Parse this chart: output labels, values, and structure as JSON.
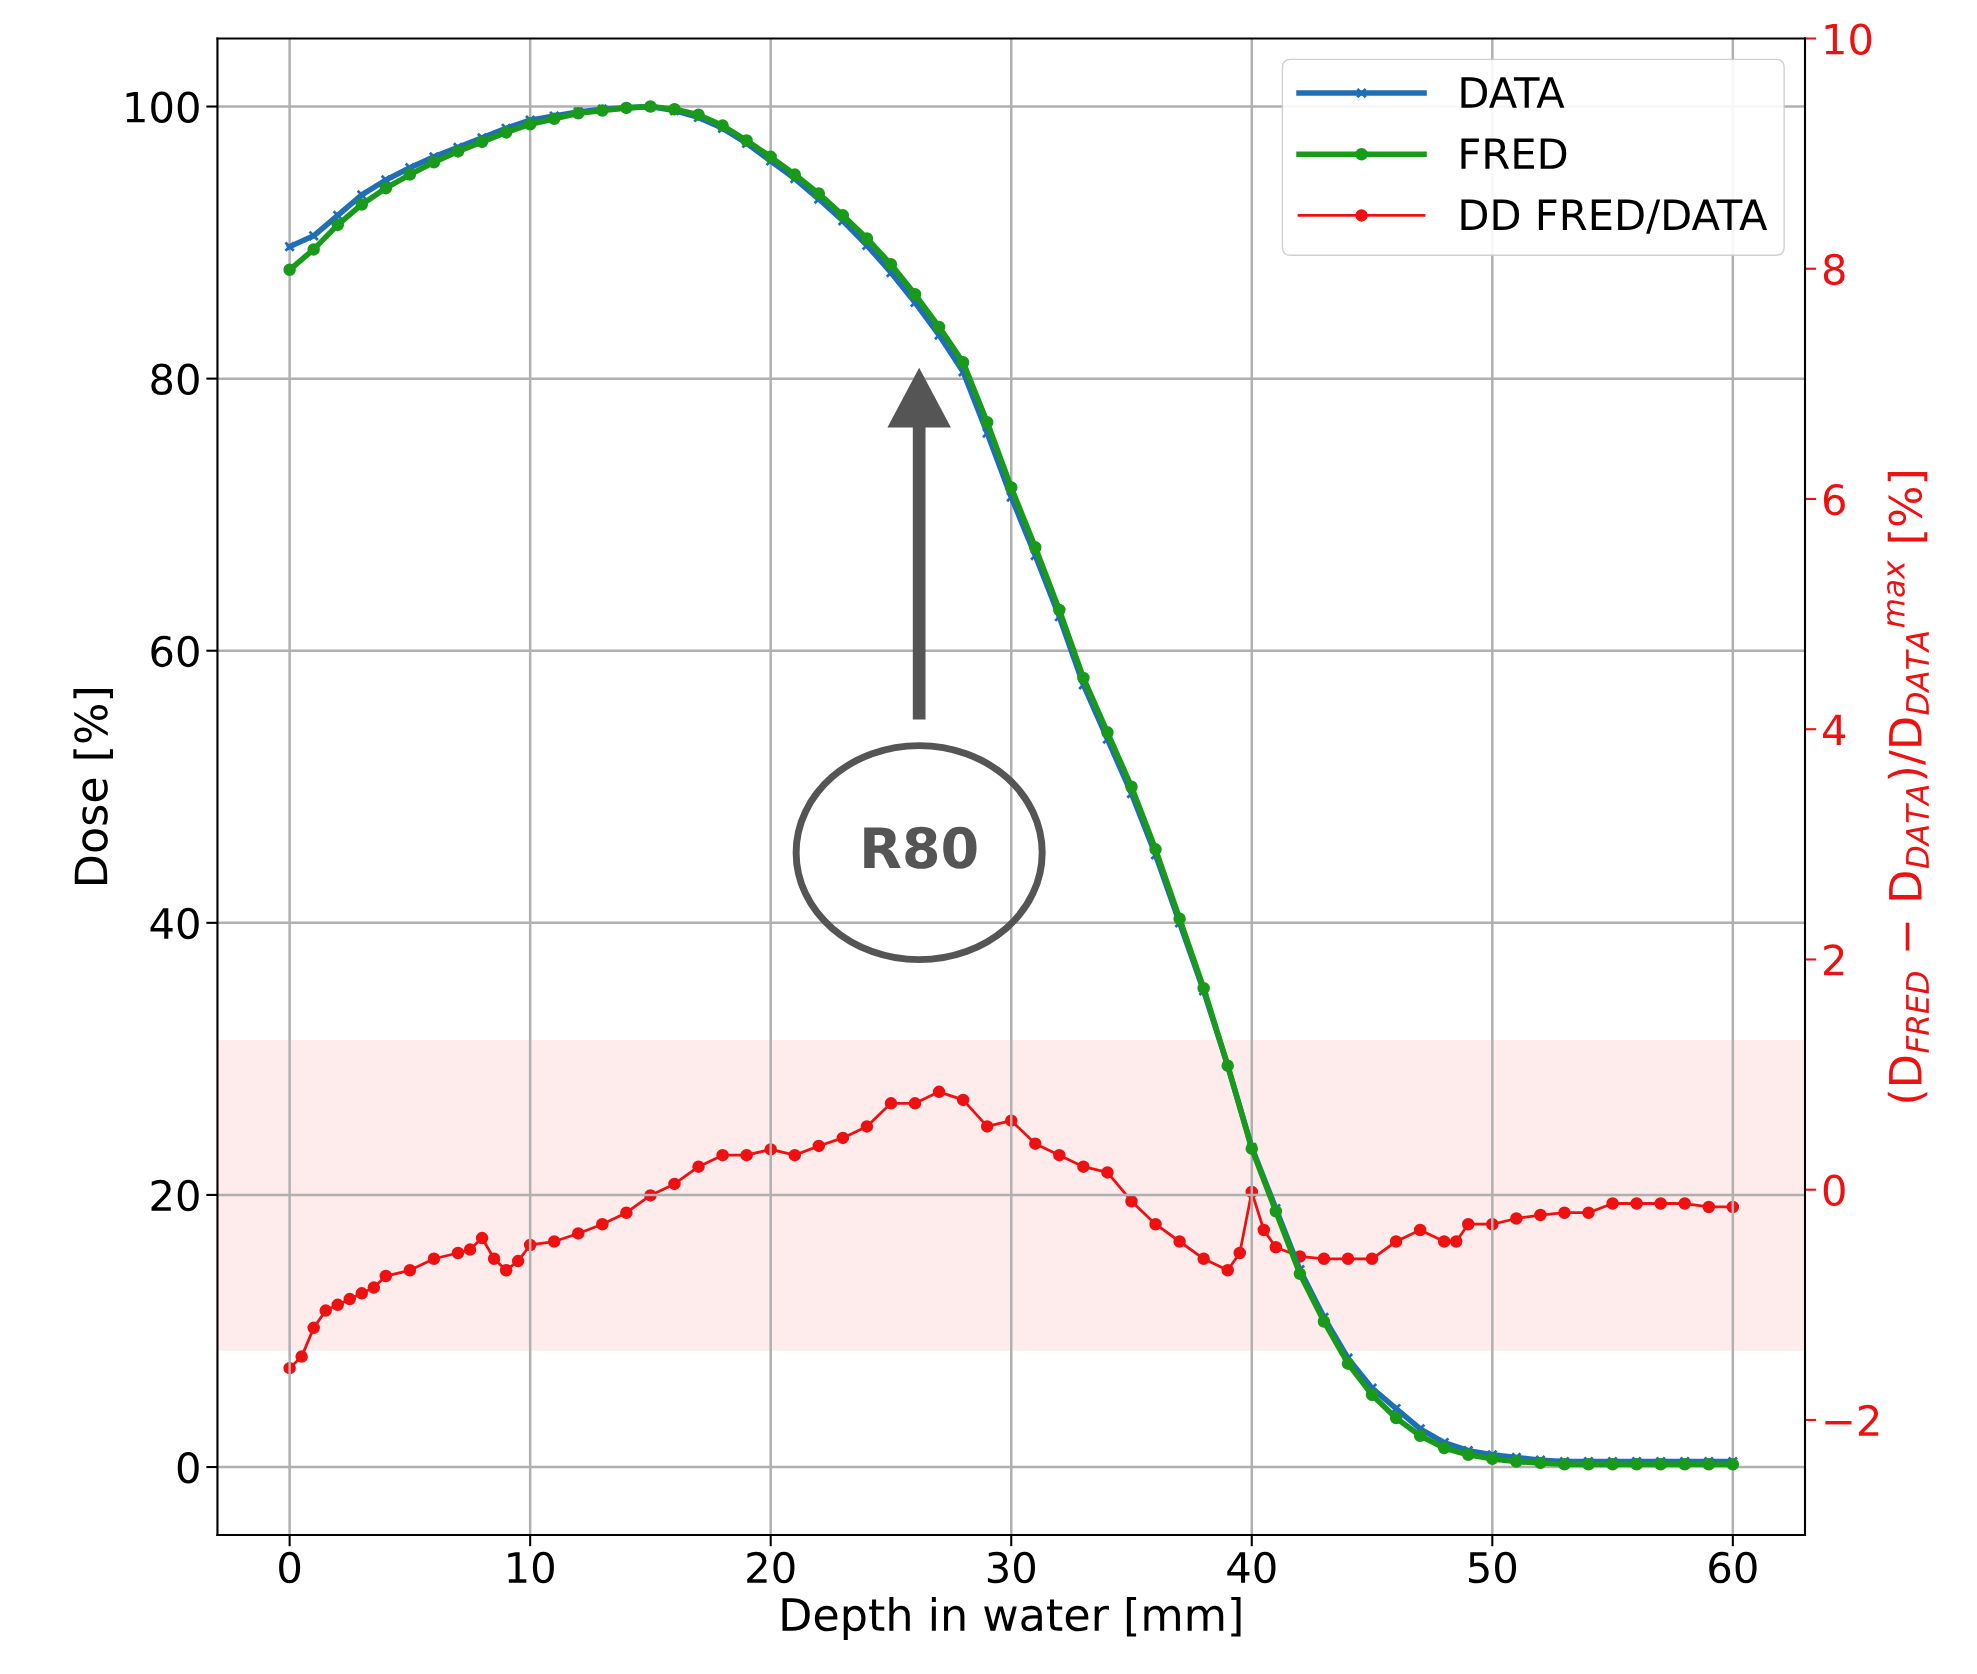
{
  "chart_data": {
    "type": "line",
    "xlabel": "Depth in water [mm]",
    "ylabel": "Dose [%]",
    "y2label": "(D$_{FRED}$ − D$_{DATA}$)/D$_{DATA}$$^{max}$ [%]",
    "xlim": [
      -3,
      63
    ],
    "xticks": [
      0,
      10,
      20,
      30,
      40,
      50,
      60
    ],
    "ylim": [
      -5,
      105
    ],
    "yticks": [
      0,
      20,
      40,
      60,
      80,
      100
    ],
    "y2lim": [
      -3,
      10
    ],
    "y2ticks": [
      {
        "value": -2,
        "label": "−2"
      },
      0,
      2,
      4,
      6,
      8,
      10
    ],
    "grid": true,
    "legend": "top right",
    "series": [
      {
        "name": "DATA",
        "color": "#1f6fb4",
        "marker": "cross",
        "x": [
          0,
          1,
          2,
          3,
          4,
          5,
          6,
          7,
          8,
          9,
          10,
          11,
          12,
          13,
          14,
          15,
          16,
          17,
          18,
          19,
          20,
          21,
          22,
          23,
          24,
          25,
          26,
          27,
          28,
          29,
          30,
          31,
          32,
          33,
          34,
          35,
          36,
          37,
          38,
          39,
          40,
          41,
          42,
          43,
          44,
          45,
          46,
          47,
          48,
          49,
          50,
          51,
          52,
          53,
          54,
          55,
          56,
          57,
          58,
          59,
          60
        ],
        "values": [
          89.7,
          90.5,
          92,
          93.5,
          94.6,
          95.5,
          96.3,
          97,
          97.7,
          98.4,
          99,
          99.3,
          99.6,
          99.8,
          99.9,
          100,
          99.7,
          99.2,
          98.4,
          97.3,
          96,
          94.7,
          93.2,
          91.6,
          89.8,
          87.8,
          85.6,
          83.2,
          80.5,
          76,
          71.3,
          67,
          62.5,
          57.5,
          53.5,
          49.5,
          45,
          40,
          35,
          29.5,
          23.5,
          19,
          14.5,
          11,
          8,
          5.8,
          4.3,
          2.8,
          1.8,
          1.2,
          0.9,
          0.7,
          0.5,
          0.4,
          0.4,
          0.4,
          0.4,
          0.4,
          0.4,
          0.4,
          0.4
        ]
      },
      {
        "name": "FRED",
        "color": "#1a9a1a",
        "marker": "circle",
        "x": [
          0,
          1,
          2,
          3,
          4,
          5,
          6,
          7,
          8,
          9,
          10,
          11,
          12,
          13,
          14,
          15,
          16,
          17,
          18,
          19,
          20,
          21,
          22,
          23,
          24,
          25,
          26,
          27,
          28,
          29,
          30,
          31,
          32,
          33,
          34,
          35,
          36,
          37,
          38,
          39,
          40,
          41,
          42,
          43,
          44,
          45,
          46,
          47,
          48,
          49,
          50,
          51,
          52,
          53,
          54,
          55,
          56,
          57,
          58,
          59,
          60
        ],
        "values": [
          88,
          89.5,
          91.3,
          92.8,
          94,
          95,
          95.9,
          96.7,
          97.4,
          98.1,
          98.7,
          99.1,
          99.5,
          99.7,
          99.9,
          100,
          99.8,
          99.4,
          98.6,
          97.5,
          96.3,
          95,
          93.6,
          92,
          90.3,
          88.4,
          86.2,
          83.8,
          81.2,
          76.8,
          72,
          67.6,
          63,
          58,
          54,
          50,
          45.4,
          40.3,
          35.2,
          29.5,
          23.4,
          18.8,
          14.2,
          10.7,
          7.6,
          5.3,
          3.6,
          2.3,
          1.4,
          0.9,
          0.6,
          0.4,
          0.3,
          0.2,
          0.2,
          0.2,
          0.2,
          0.2,
          0.2,
          0.2,
          0.2
        ]
      },
      {
        "name": "DD FRED/DATA",
        "color": "#ee1111",
        "marker": "circle",
        "axis": "y2",
        "x": [
          0,
          0.5,
          1,
          1.5,
          2,
          2.5,
          3,
          3.5,
          4,
          5,
          6,
          7,
          7.5,
          8,
          8.5,
          9,
          9.5,
          10,
          11,
          12,
          13,
          14,
          15,
          16,
          17,
          18,
          19,
          20,
          21,
          22,
          23,
          24,
          25,
          26,
          27,
          28,
          29,
          30,
          31,
          32,
          33,
          34,
          35,
          36,
          37,
          38,
          39,
          39.5,
          40,
          40.5,
          41,
          42,
          43,
          44,
          45,
          46,
          47,
          48,
          48.5,
          49,
          50,
          51,
          52,
          53,
          54,
          55,
          56,
          57,
          58,
          59,
          60
        ],
        "values": [
          -1.55,
          -1.45,
          -1.2,
          -1.05,
          -1,
          -0.95,
          -0.9,
          -0.85,
          -0.75,
          -0.7,
          -0.6,
          -0.55,
          -0.52,
          -0.42,
          -0.6,
          -0.7,
          -0.62,
          -0.48,
          -0.45,
          -0.38,
          -0.3,
          -0.2,
          -0.05,
          0.05,
          0.2,
          0.3,
          0.3,
          0.35,
          0.3,
          0.38,
          0.45,
          0.55,
          0.75,
          0.75,
          0.85,
          0.78,
          0.55,
          0.6,
          0.4,
          0.3,
          0.2,
          0.15,
          -0.1,
          -0.3,
          -0.45,
          -0.6,
          -0.7,
          -0.55,
          -0.02,
          -0.35,
          -0.5,
          -0.58,
          -0.6,
          -0.6,
          -0.6,
          -0.45,
          -0.35,
          -0.45,
          -0.45,
          -0.3,
          -0.3,
          -0.25,
          -0.22,
          -0.2,
          -0.2,
          -0.12,
          -0.12,
          -0.12,
          -0.12,
          -0.15,
          -0.15
        ]
      }
    ],
    "bands": [
      {
        "axis": "y2",
        "from": -1.4,
        "to": 1.3,
        "color": "#fdeceb"
      }
    ],
    "annotations": [
      "R80"
    ]
  }
}
